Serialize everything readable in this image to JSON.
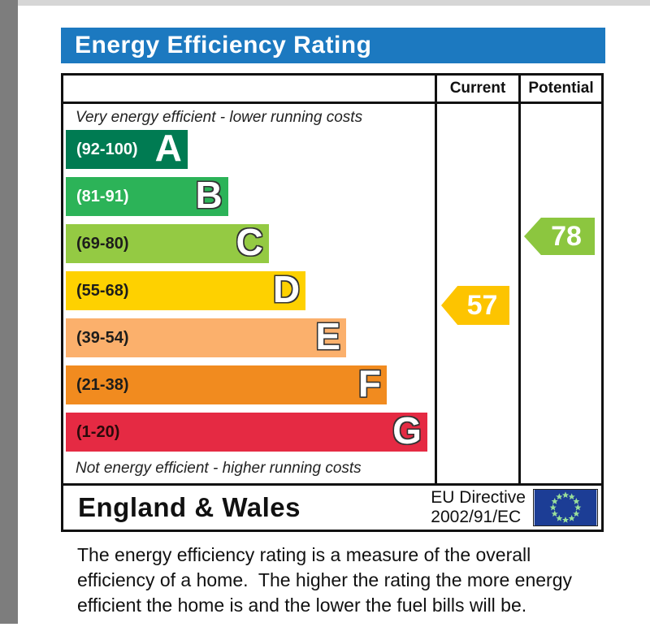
{
  "title_bar": {
    "label": "Energy Efficiency Rating",
    "background": "#1c79c0",
    "text_color": "#ffffff"
  },
  "page_colors": {
    "side_strip": "#7d7d7d",
    "top_strip": "#d6d6d6",
    "table_border": "#111111"
  },
  "chart_data": {
    "type": "bar",
    "title": "Energy Efficiency Rating",
    "header": {
      "current": "Current",
      "potential": "Potential"
    },
    "top_caption": "Very energy efficient - lower running costs",
    "bottom_caption": "Not energy efficient - higher running costs",
    "bands": [
      {
        "letter": "A",
        "range": "(92-100)",
        "color": "#007b52",
        "text_color": "#ffffff",
        "width_pct": 33,
        "letter_outline": false
      },
      {
        "letter": "B",
        "range": "(81-91)",
        "color": "#2cb358",
        "text_color": "#ffffff",
        "width_pct": 44,
        "letter_outline": true
      },
      {
        "letter": "C",
        "range": "(69-80)",
        "color": "#94ca43",
        "text_color": "#1d1d1b",
        "width_pct": 55,
        "letter_outline": true
      },
      {
        "letter": "D",
        "range": "(55-68)",
        "color": "#fed100",
        "text_color": "#1d1d1b",
        "width_pct": 65,
        "letter_outline": true
      },
      {
        "letter": "E",
        "range": "(39-54)",
        "color": "#fbb06c",
        "text_color": "#1d1d1b",
        "width_pct": 76,
        "letter_outline": true
      },
      {
        "letter": "F",
        "range": "(21-38)",
        "color": "#f18b1f",
        "text_color": "#1d1d1b",
        "width_pct": 87,
        "letter_outline": true
      },
      {
        "letter": "G",
        "range": "(1-20)",
        "color": "#e52a43",
        "text_color": "#2a0a0a",
        "width_pct": 98,
        "letter_outline": true
      }
    ],
    "current": {
      "value": "57",
      "band": "D",
      "color": "#fdc400"
    },
    "potential": {
      "value": "78",
      "band": "C",
      "color": "#8cc63f"
    },
    "footer": {
      "region": "England & Wales",
      "directive_line1": "EU Directive",
      "directive_line2": "2002/91/EC",
      "flag_color": "#1c3d95",
      "star_color": "#9ae09a"
    },
    "description_lines": [
      "The energy efficiency rating is a measure of the overall",
      "efficiency of a home.  The higher the rating the more energy",
      "efficient the home is and the lower the fuel bills will be."
    ]
  }
}
